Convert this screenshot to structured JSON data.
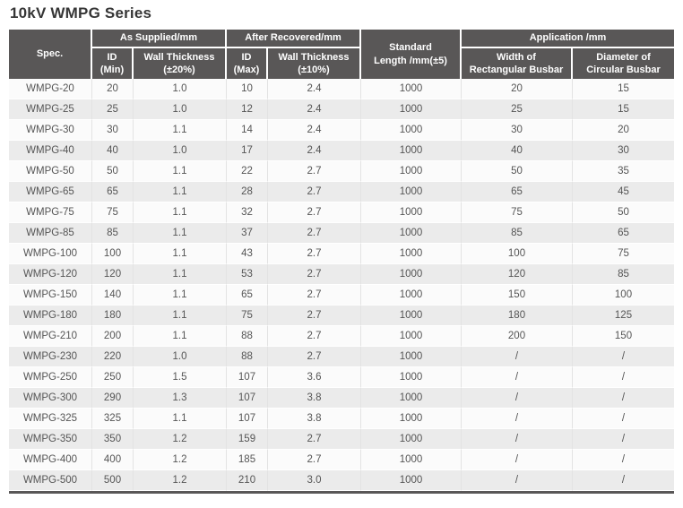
{
  "title": "10kV WMPG Series",
  "colors": {
    "header_bg": "#595757",
    "header_text": "#ffffff",
    "row_bg": "#fbfbfb",
    "row_alt_bg": "#ebebeb",
    "body_text": "#555555",
    "title_text": "#363636",
    "bottom_border": "#595757"
  },
  "table": {
    "header": {
      "spec": "Spec.",
      "as_supplied": "As Supplied/mm",
      "after_recovered": "After Recovered/mm",
      "standard_length": "Standard\nLength /mm(±5)",
      "application": "Application /mm",
      "id_min": "ID\n(Min)",
      "wall_thickness_20": "Wall Thickness\n(±20%)",
      "id_max": "ID\n(Max)",
      "wall_thickness_10": "Wall Thickness\n(±10%)",
      "width_rect_busbar": "Width of\nRectangular Busbar",
      "dia_circ_busbar": "Diameter of\nCircular Busbar"
    },
    "columns": [
      "spec",
      "id_min",
      "wall_thickness_20",
      "id_max",
      "wall_thickness_10",
      "standard_length",
      "width_rect_busbar",
      "dia_circ_busbar"
    ],
    "rows": [
      [
        "WMPG-20",
        "20",
        "1.0",
        "10",
        "2.4",
        "1000",
        "20",
        "15"
      ],
      [
        "WMPG-25",
        "25",
        "1.0",
        "12",
        "2.4",
        "1000",
        "25",
        "15"
      ],
      [
        "WMPG-30",
        "30",
        "1.1",
        "14",
        "2.4",
        "1000",
        "30",
        "20"
      ],
      [
        "WMPG-40",
        "40",
        "1.0",
        "17",
        "2.4",
        "1000",
        "40",
        "30"
      ],
      [
        "WMPG-50",
        "50",
        "1.1",
        "22",
        "2.7",
        "1000",
        "50",
        "35"
      ],
      [
        "WMPG-65",
        "65",
        "1.1",
        "28",
        "2.7",
        "1000",
        "65",
        "45"
      ],
      [
        "WMPG-75",
        "75",
        "1.1",
        "32",
        "2.7",
        "1000",
        "75",
        "50"
      ],
      [
        "WMPG-85",
        "85",
        "1.1",
        "37",
        "2.7",
        "1000",
        "85",
        "65"
      ],
      [
        "WMPG-100",
        "100",
        "1.1",
        "43",
        "2.7",
        "1000",
        "100",
        "75"
      ],
      [
        "WMPG-120",
        "120",
        "1.1",
        "53",
        "2.7",
        "1000",
        "120",
        "85"
      ],
      [
        "WMPG-150",
        "140",
        "1.1",
        "65",
        "2.7",
        "1000",
        "150",
        "100"
      ],
      [
        "WMPG-180",
        "180",
        "1.1",
        "75",
        "2.7",
        "1000",
        "180",
        "125"
      ],
      [
        "WMPG-210",
        "200",
        "1.1",
        "88",
        "2.7",
        "1000",
        "200",
        "150"
      ],
      [
        "WMPG-230",
        "220",
        "1.0",
        "88",
        "2.7",
        "1000",
        "/",
        "/"
      ],
      [
        "WMPG-250",
        "250",
        "1.5",
        "107",
        "3.6",
        "1000",
        "/",
        "/"
      ],
      [
        "WMPG-300",
        "290",
        "1.3",
        "107",
        "3.8",
        "1000",
        "/",
        "/"
      ],
      [
        "WMPG-325",
        "325",
        "1.1",
        "107",
        "3.8",
        "1000",
        "/",
        "/"
      ],
      [
        "WMPG-350",
        "350",
        "1.2",
        "159",
        "2.7",
        "1000",
        "/",
        "/"
      ],
      [
        "WMPG-400",
        "400",
        "1.2",
        "185",
        "2.7",
        "1000",
        "/",
        "/"
      ],
      [
        "WMPG-500",
        "500",
        "1.2",
        "210",
        "3.0",
        "1000",
        "/",
        "/"
      ]
    ]
  }
}
